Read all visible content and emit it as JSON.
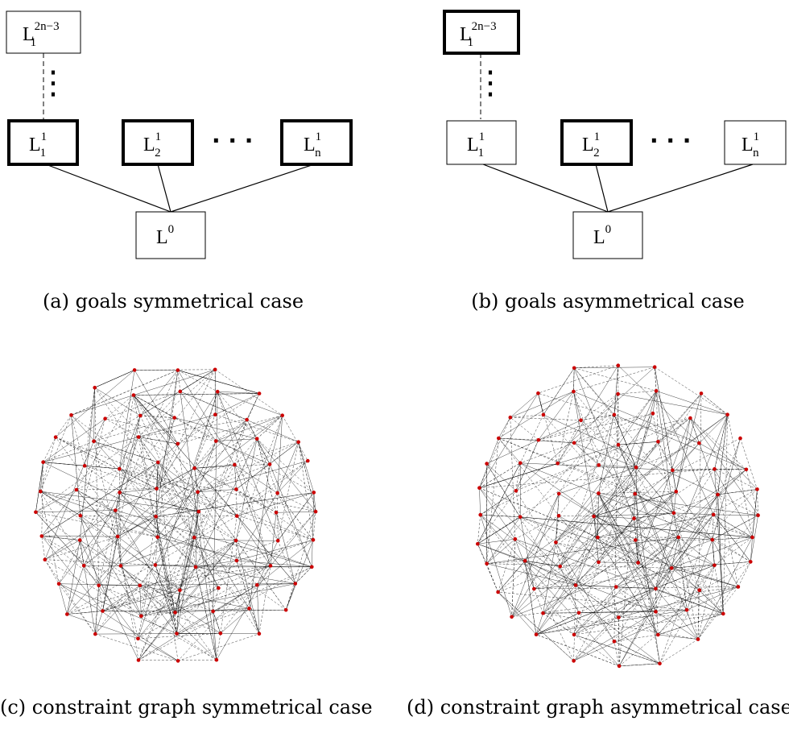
{
  "panels": [
    {
      "id": "a",
      "caption": "(a) goals symmetrical case",
      "boxes": {
        "top": {
          "base": "L",
          "sub": "1",
          "sup": "2n−3"
        },
        "l11": {
          "base": "L",
          "sub": "1",
          "sup": "1"
        },
        "l12": {
          "base": "L",
          "sub": "2",
          "sup": "1"
        },
        "l1n": {
          "base": "L",
          "sub": "n",
          "sup": "1"
        },
        "l0": {
          "base": "L",
          "sup": "0"
        }
      },
      "highlighted": [
        "l11",
        "l12",
        "l1n"
      ],
      "vertical_dots": "⋮",
      "horizontal_dots": "· · ·"
    },
    {
      "id": "b",
      "caption": "(b) goals asymmetrical case",
      "boxes": {
        "top": {
          "base": "L",
          "sub": "1",
          "sup": "2n−3"
        },
        "l11": {
          "base": "L",
          "sub": "1",
          "sup": "1"
        },
        "l12": {
          "base": "L",
          "sub": "2",
          "sup": "1"
        },
        "l1n": {
          "base": "L",
          "sub": "n",
          "sup": "1"
        },
        "l0": {
          "base": "L",
          "sup": "0"
        }
      },
      "highlighted": [
        "top",
        "l12"
      ],
      "vertical_dots": "⋮",
      "horizontal_dots": "· · ·"
    },
    {
      "id": "c",
      "caption": "(c) constraint graph symmetrical case",
      "node_color": "#cc0000",
      "seed": 7
    },
    {
      "id": "d",
      "caption": "(d) constraint graph asymmetrical case",
      "node_color": "#cc0000",
      "seed": 13
    }
  ]
}
